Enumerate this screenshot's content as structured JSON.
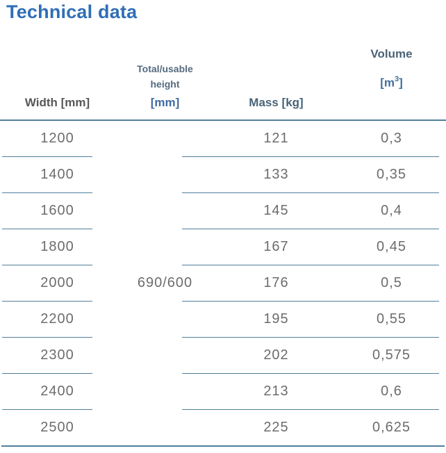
{
  "page": {
    "title": "Technical data"
  },
  "table": {
    "headers": {
      "width": "Width [mm]",
      "height_line1": "Total/usable",
      "height_line2": "height",
      "height_unit": "[mm]",
      "mass": "Mass [kg]",
      "volume": "Volume",
      "volume_unit_open": "[m",
      "volume_unit_sup": "3",
      "volume_unit_close": "]"
    },
    "height_shared_value": "690/600",
    "rows": [
      {
        "width": "1200",
        "mass": "121",
        "volume": "0,3"
      },
      {
        "width": "1400",
        "mass": "133",
        "volume": "0,35"
      },
      {
        "width": "1600",
        "mass": "145",
        "volume": "0,4"
      },
      {
        "width": "1800",
        "mass": "167",
        "volume": "0,45"
      },
      {
        "width": "2000",
        "mass": "176",
        "volume": "0,5"
      },
      {
        "width": "2200",
        "mass": "195",
        "volume": "0,55"
      },
      {
        "width": "2300",
        "mass": "202",
        "volume": "0,575"
      },
      {
        "width": "2400",
        "mass": "213",
        "volume": "0,6"
      },
      {
        "width": "2500",
        "mass": "225",
        "volume": "0,625"
      }
    ]
  },
  "colors": {
    "title": "#2f6eb6",
    "rule": "#4f7e9a",
    "header_slate": "#4a6378",
    "header_gray": "#57585a",
    "header_bluegray": "#556a7e",
    "header_blue": "#3f6ba4",
    "unit_blue": "#42709a",
    "data_text": "#6b6c6e"
  }
}
